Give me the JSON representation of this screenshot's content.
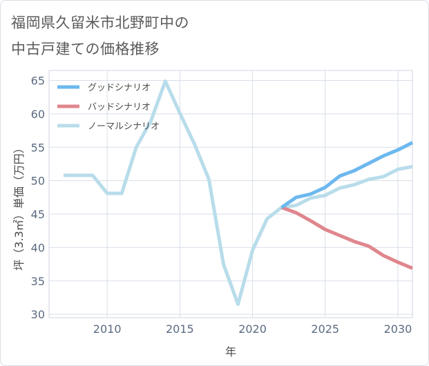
{
  "title_lines": [
    "福岡県久留米市北野町中の",
    "中古戸建ての価格推移"
  ],
  "chart_data": {
    "type": "line",
    "title": "福岡県久留米市北野町中の中古戸建ての価格推移",
    "xlabel": "年",
    "ylabel": "坪（3.3㎡）単価（万円）",
    "xlim": [
      2006,
      2031
    ],
    "ylim": [
      29.5,
      66.5
    ],
    "xticks": [
      2010,
      2015,
      2020,
      2025,
      2030
    ],
    "yticks": [
      30,
      35,
      40,
      45,
      50,
      55,
      60,
      65
    ],
    "grid": true,
    "legend_position": "top-left",
    "series": [
      {
        "name": "グッドシナリオ",
        "color": "#6cb8ee",
        "x": [
          2022,
          2023,
          2024,
          2025,
          2026,
          2027,
          2028,
          2029,
          2030,
          2031
        ],
        "values": [
          46.0,
          47.5,
          48.0,
          49.0,
          50.7,
          51.5,
          52.6,
          53.7,
          54.6,
          55.7
        ]
      },
      {
        "name": "バッドシナリオ",
        "color": "#e0868d",
        "x": [
          2022,
          2023,
          2024,
          2025,
          2026,
          2027,
          2028,
          2029,
          2030,
          2031
        ],
        "values": [
          46.0,
          45.2,
          44.0,
          42.7,
          41.8,
          40.9,
          40.2,
          38.8,
          37.8,
          36.9
        ]
      },
      {
        "name": "ノーマルシナリオ",
        "color": "#b8dcea",
        "x": [
          2007,
          2008,
          2009,
          2010,
          2011,
          2012,
          2013,
          2014,
          2015,
          2016,
          2017,
          2018,
          2019,
          2020,
          2021,
          2022,
          2023,
          2024,
          2025,
          2026,
          2027,
          2028,
          2029,
          2030,
          2031
        ],
        "values": [
          50.8,
          50.8,
          50.8,
          48.1,
          48.1,
          55.0,
          58.9,
          64.9,
          60.1,
          55.5,
          50.2,
          37.5,
          31.5,
          39.6,
          44.3,
          46.0,
          46.3,
          47.4,
          47.8,
          48.9,
          49.4,
          50.2,
          50.6,
          51.7,
          52.1
        ]
      }
    ]
  }
}
